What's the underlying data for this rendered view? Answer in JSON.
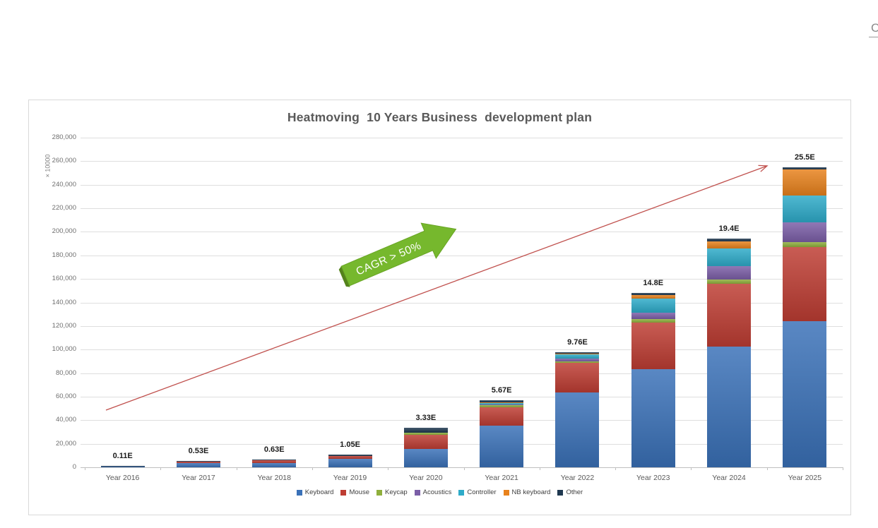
{
  "page": {
    "clipped_glyph": "C"
  },
  "chart_data": {
    "type": "bar",
    "stacked": true,
    "title": "Heatmoving  10 Years Business  development plan",
    "y_unit_label": "× 10000",
    "categories": [
      "Year 2016",
      "Year 2017",
      "Year 2018",
      "Year 2019",
      "Year 2020",
      "Year 2021",
      "Year 2022",
      "Year 2023",
      "Year 2024",
      "Year 2025"
    ],
    "series": [
      {
        "name": "Keyboard",
        "color": "#3a71b8",
        "values": [
          900,
          3600,
          3600,
          7200,
          15300,
          35500,
          63500,
          83500,
          102800,
          124200
        ]
      },
      {
        "name": "Mouse",
        "color": "#be3d33",
        "values": [
          150,
          1300,
          2100,
          2400,
          12500,
          15500,
          25000,
          39500,
          52900,
          62900
        ]
      },
      {
        "name": "Keycap",
        "color": "#8faf3c",
        "values": [
          0,
          0,
          0,
          0,
          1400,
          1500,
          1700,
          2800,
          4000,
          4000
        ]
      },
      {
        "name": "Acoustics",
        "color": "#7b5ea7",
        "values": [
          0,
          0,
          0,
          0,
          0,
          800,
          2300,
          5600,
          11000,
          17000
        ]
      },
      {
        "name": "Controller",
        "color": "#2eabc9",
        "values": [
          0,
          0,
          0,
          0,
          0,
          1400,
          3500,
          11600,
          15000,
          23000
        ]
      },
      {
        "name": "NB keyboard",
        "color": "#e8821d",
        "values": [
          0,
          0,
          0,
          0,
          0,
          200,
          400,
          3000,
          6300,
          21900
        ]
      },
      {
        "name": "Other",
        "color": "#1f3850",
        "values": [
          50,
          400,
          600,
          900,
          4100,
          1800,
          1200,
          2000,
          2000,
          2000
        ]
      }
    ],
    "total_labels": [
      "0.11E",
      "0.53E",
      "0.63E",
      "1.05E",
      "3.33E",
      "5.67E",
      "9.76E",
      "14.8E",
      "19.4E",
      "25.5E"
    ],
    "ylim": [
      0,
      280000
    ],
    "y_tick_step": 20000,
    "grid": true,
    "legend_position": "bottom",
    "annotations": {
      "cagr_arrow": {
        "label": "CAGR > 50%",
        "fill": "#76b82d",
        "edge": "#68a424"
      },
      "trend_arrow": {
        "color": "#c0504d",
        "from_value": 47000,
        "to_value": 250000
      }
    }
  }
}
